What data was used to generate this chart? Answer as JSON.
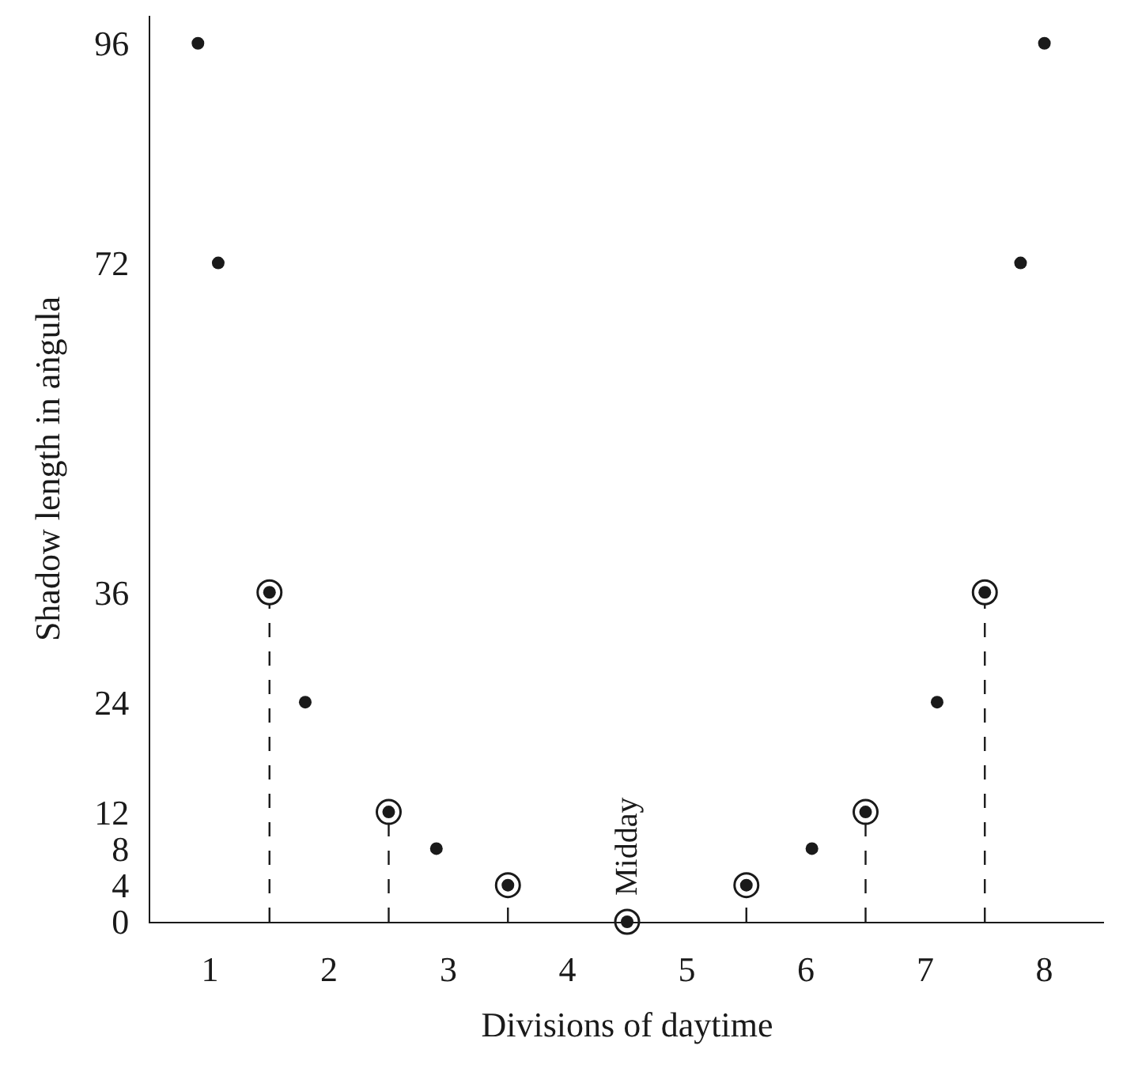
{
  "chart_data": {
    "type": "scatter",
    "xlabel": "Divisions of daytime",
    "ylabel": "Shadow length in aṅgula",
    "series": [
      {
        "type": "lollipop",
        "color": "#1a1a1a",
        "marker": "circle",
        "line_style": "dashed",
        "x": [
          1,
          2,
          3,
          4,
          5,
          6,
          7
        ],
        "values": [
          36,
          12,
          4,
          0,
          4,
          12,
          36
        ]
      },
      {
        "color": "#1a1a1a",
        "marker": "circle",
        "x": [
          0.4,
          0.57,
          1.3,
          2.4,
          5.55,
          6.6,
          7.3,
          7.5
        ],
        "values": [
          96,
          72,
          24,
          8,
          8,
          24,
          72,
          96
        ]
      }
    ],
    "xlim": [
      0,
      8
    ],
    "ylim": [
      0,
      99
    ],
    "xticks": [
      {
        "value": 0.5,
        "label": "1"
      },
      {
        "value": 1.5,
        "label": "2"
      },
      {
        "value": 2.5,
        "label": "3"
      },
      {
        "value": 3.5,
        "label": "4"
      },
      {
        "value": 4.5,
        "label": "5"
      },
      {
        "value": 5.5,
        "label": "6"
      },
      {
        "value": 6.5,
        "label": "7"
      },
      {
        "value": 7.5,
        "label": "8"
      }
    ],
    "yticks": [
      0,
      4,
      8,
      12,
      24,
      36,
      72,
      96
    ],
    "annotations": [
      {
        "text": "Midday",
        "x": 4,
        "y": 0
      }
    ]
  }
}
